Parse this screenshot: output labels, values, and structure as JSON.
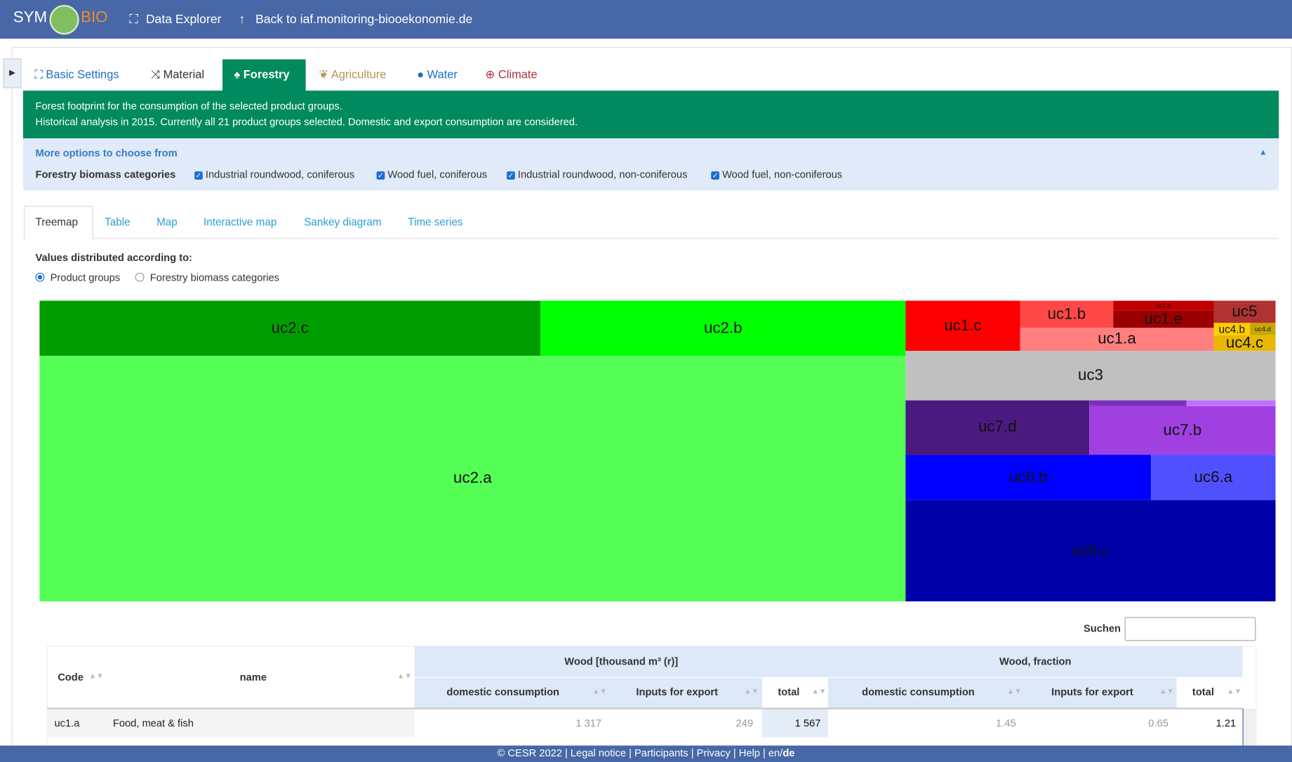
{
  "navbar": {
    "logo_left": "SYM",
    "logo_right": "BIO",
    "links": [
      "Data Explorer",
      "Back to iaf.monitoring-biooekonomie.de"
    ]
  },
  "tabs": [
    "Basic Settings",
    "Material",
    "Forestry",
    "Agriculture",
    "Water",
    "Climate"
  ],
  "banner": {
    "line1": "Forest footprint for the consumption of the selected product groups.",
    "line2": "Historical analysis in 2015. Currently all 21 product groups selected. Domestic and export consumption are considered."
  },
  "options": {
    "title": "More options to choose from",
    "label": "Forestry biomass categories",
    "checkboxes": [
      "Industrial roundwood, coniferous",
      "Wood fuel, coniferous",
      "Industrial roundwood, non-coniferous",
      "Wood fuel, non-coniferous"
    ]
  },
  "subtabs": [
    "Treemap",
    "Table",
    "Map",
    "Interactive map",
    "Sankey diagram",
    "Time series"
  ],
  "distribution": {
    "label": "Values distributed according to:",
    "radios": [
      "Product groups",
      "Forestry biomass categories"
    ]
  },
  "treemap": {
    "tiles": [
      "uc2.c",
      "uc2.b",
      "uc2.a",
      "uc1.c",
      "uc1.b",
      "uc1.d",
      "uc1.e",
      "uc1.a",
      "uc5",
      "uc4.b",
      "uc4.d",
      "uc4.c",
      "uc3",
      "uc7.d",
      "uc7.b",
      "uc6.b",
      "uc6.a",
      "uc6.c"
    ]
  },
  "table": {
    "search_label": "Suchen",
    "headers": {
      "code": "Code",
      "name": "name",
      "group1": "Wood [thousand m³ (r)]",
      "group2": "Wood, fraction",
      "columns": [
        "domestic consumption",
        "Inputs for export",
        "total",
        "domestic consumption",
        "Inputs for export",
        "total"
      ]
    },
    "rows": [
      [
        "uc1.a",
        "Food, meat & fish",
        "1 317",
        "249",
        "1 567",
        "1.45",
        "0.65",
        "1.21"
      ]
    ]
  },
  "footer": {
    "text": "© CESR 2022 | Legal notice | Participants | Privacy | Help | en/",
    "active_lang": "de"
  }
}
